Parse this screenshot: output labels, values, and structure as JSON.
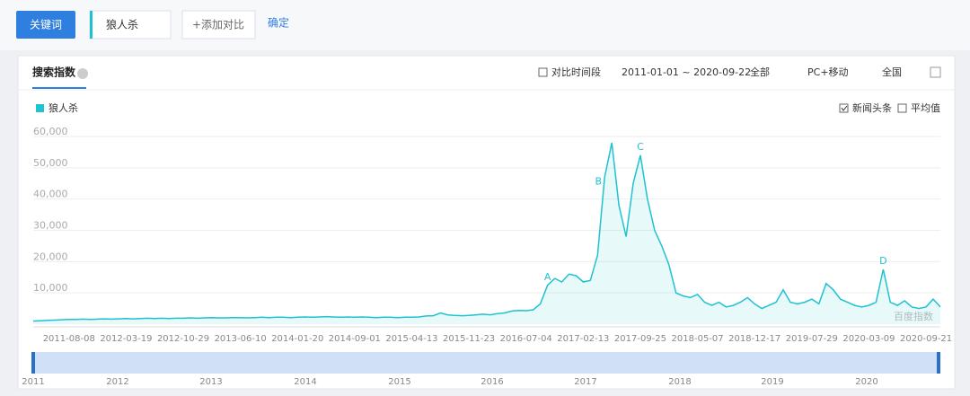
{
  "toolbar": {
    "keyword_button": "关键词",
    "keyword": "狼人杀",
    "add_compare": "+添加对比",
    "confirm": "确定"
  },
  "panel": {
    "tab": "搜索指数",
    "compare_period": "对比时间段",
    "date_range": "2011-01-01 ~ 2020-09-22",
    "scope": "全部",
    "device": "PC+移动",
    "region": "全国",
    "news_option": "新闻头条",
    "average_option": "平均值",
    "watermark": "百度指数"
  },
  "navigator_years": [
    "2011",
    "2012",
    "2013",
    "2014",
    "2015",
    "2016",
    "2017",
    "2018",
    "2019",
    "2020"
  ],
  "chart_data": {
    "type": "line",
    "categories": [
      null,
      null,
      null,
      null,
      null,
      "2011-08-08",
      null,
      null,
      null,
      null,
      null,
      null,
      null,
      "2012-03-19",
      null,
      null,
      null,
      null,
      null,
      null,
      null,
      "2012-10-29",
      null,
      null,
      null,
      null,
      null,
      null,
      null,
      "2013-06-10",
      null,
      null,
      null,
      null,
      null,
      null,
      null,
      "2014-01-20",
      null,
      null,
      null,
      null,
      null,
      null,
      null,
      "2014-09-01",
      null,
      null,
      null,
      null,
      null,
      null,
      null,
      "2015-04-13",
      null,
      null,
      null,
      null,
      null,
      null,
      null,
      "2015-11-23",
      null,
      null,
      null,
      null,
      null,
      null,
      null,
      "2016-07-04",
      null,
      null,
      null,
      null,
      null,
      null,
      null,
      "2017-02-13",
      null,
      null,
      null,
      null,
      null,
      null,
      null,
      "2017-09-25",
      null,
      null,
      null,
      null,
      null,
      null,
      null,
      "2018-05-07",
      null,
      null,
      null,
      null,
      null,
      null,
      null,
      "2018-12-17",
      null,
      null,
      null,
      null,
      null,
      null,
      null,
      "2019-07-29",
      null,
      null,
      null,
      null,
      null,
      null,
      null,
      "2020-03-09",
      null,
      null,
      null,
      null,
      null,
      null,
      null,
      "2020-09-21",
      null,
      null
    ],
    "series": [
      {
        "name": "狼人杀",
        "color": "#1fc2d0",
        "values": [
          1000,
          1100,
          1200,
          1300,
          1400,
          1500,
          1500,
          1600,
          1500,
          1600,
          1700,
          1600,
          1700,
          1800,
          1700,
          1800,
          1900,
          1800,
          1900,
          1800,
          1900,
          1900,
          2000,
          1900,
          2000,
          2100,
          2000,
          2000,
          2100,
          2100,
          2000,
          2100,
          2200,
          2100,
          2200,
          2200,
          2100,
          2200,
          2300,
          2200,
          2300,
          2400,
          2300,
          2200,
          2300,
          2200,
          2300,
          2200,
          2100,
          2200,
          2200,
          2100,
          2200,
          2200,
          2300,
          2600,
          2700,
          3600,
          3000,
          2800,
          2700,
          2800,
          3000,
          3200,
          3000,
          3400,
          3600,
          4200,
          4400,
          4300,
          4600,
          6500,
          12400,
          14600,
          13500,
          16000,
          15500,
          13500,
          14000,
          22000,
          47000,
          58000,
          38000,
          28000,
          45000,
          54000,
          40000,
          30000,
          25000,
          19000,
          10000,
          9000,
          8500,
          9500,
          7000,
          6000,
          7000,
          5500,
          6000,
          7000,
          8500,
          6500,
          5000,
          6000,
          7000,
          11000,
          7000,
          6500,
          7000,
          8000,
          6500,
          13000,
          11000,
          8000,
          7000,
          6000,
          5500,
          6000,
          7000,
          17500,
          7000,
          6000,
          7500,
          5500,
          5000,
          5500,
          8000,
          5500
        ]
      }
    ],
    "annotations": [
      "A",
      "B",
      "C",
      "D"
    ],
    "ylim": [
      0,
      60000
    ],
    "yticks": [
      {
        "value": 10000,
        "label": "10,000"
      },
      {
        "value": 20000,
        "label": "20,000"
      },
      {
        "value": 30000,
        "label": "30,000"
      },
      {
        "value": 40000,
        "label": "40,000"
      },
      {
        "value": 50000,
        "label": "50,000"
      },
      {
        "value": 60000,
        "label": "60,000"
      }
    ],
    "grid": true
  }
}
